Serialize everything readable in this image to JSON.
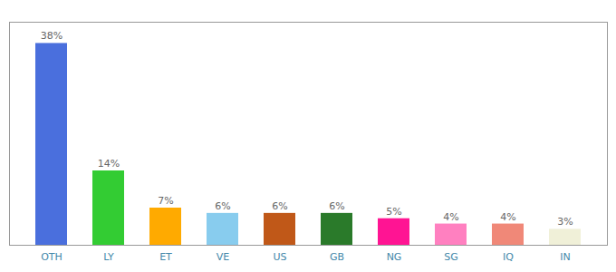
{
  "chart_data": {
    "type": "bar",
    "categories": [
      "OTH",
      "LY",
      "ET",
      "VE",
      "US",
      "GB",
      "NG",
      "SG",
      "IQ",
      "IN"
    ],
    "values": [
      38,
      14,
      7,
      6,
      6,
      6,
      5,
      4,
      4,
      3
    ],
    "value_labels": [
      "38%",
      "14%",
      "7%",
      "6%",
      "6%",
      "6%",
      "5%",
      "4%",
      "4%",
      "3%"
    ],
    "colors": [
      "#4a6fdd",
      "#33cc33",
      "#ffaa00",
      "#88ccee",
      "#c05818",
      "#2a7a2a",
      "#ff1493",
      "#ff80c0",
      "#f08878",
      "#f0f0d8"
    ],
    "ylim": [
      0,
      42
    ],
    "data_labels": true,
    "tick_labels": "x",
    "grid": false
  }
}
